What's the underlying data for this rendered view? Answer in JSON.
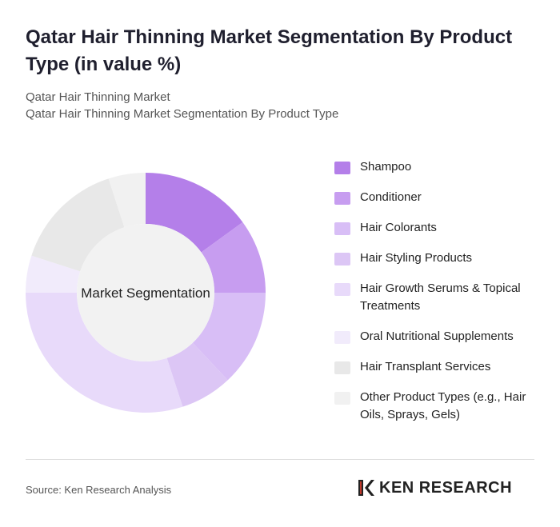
{
  "header": {
    "title": "Qatar Hair Thinning Market Segmentation By Product Type (in value %)",
    "subtitle_1": "Qatar Hair Thinning Market",
    "subtitle_2": "Qatar Hair Thinning Market Segmentation By Product Type"
  },
  "chart_data": {
    "type": "donut",
    "center_label": "Market Segmentation",
    "categories": [
      "Shampoo",
      "Conditioner",
      "Hair Colorants",
      "Hair Styling Products",
      "Hair Growth Serums & Topical Treatments",
      "Oral Nutritional Supplements",
      "Hair Transplant Services",
      "Other Product Types (e.g., Hair Oils, Sprays, Gels)"
    ],
    "values": [
      15,
      10,
      13,
      7,
      30,
      5,
      15,
      5
    ],
    "colors": [
      "#b47fe9",
      "#c79df0",
      "#d8bef6",
      "#dcc6f5",
      "#e8dafa",
      "#f1ebfb",
      "#e8e8e8",
      "#f1f1f1"
    ]
  },
  "footer": {
    "source": "Source: Ken Research Analysis",
    "logo": "KEN RESEARCH"
  }
}
